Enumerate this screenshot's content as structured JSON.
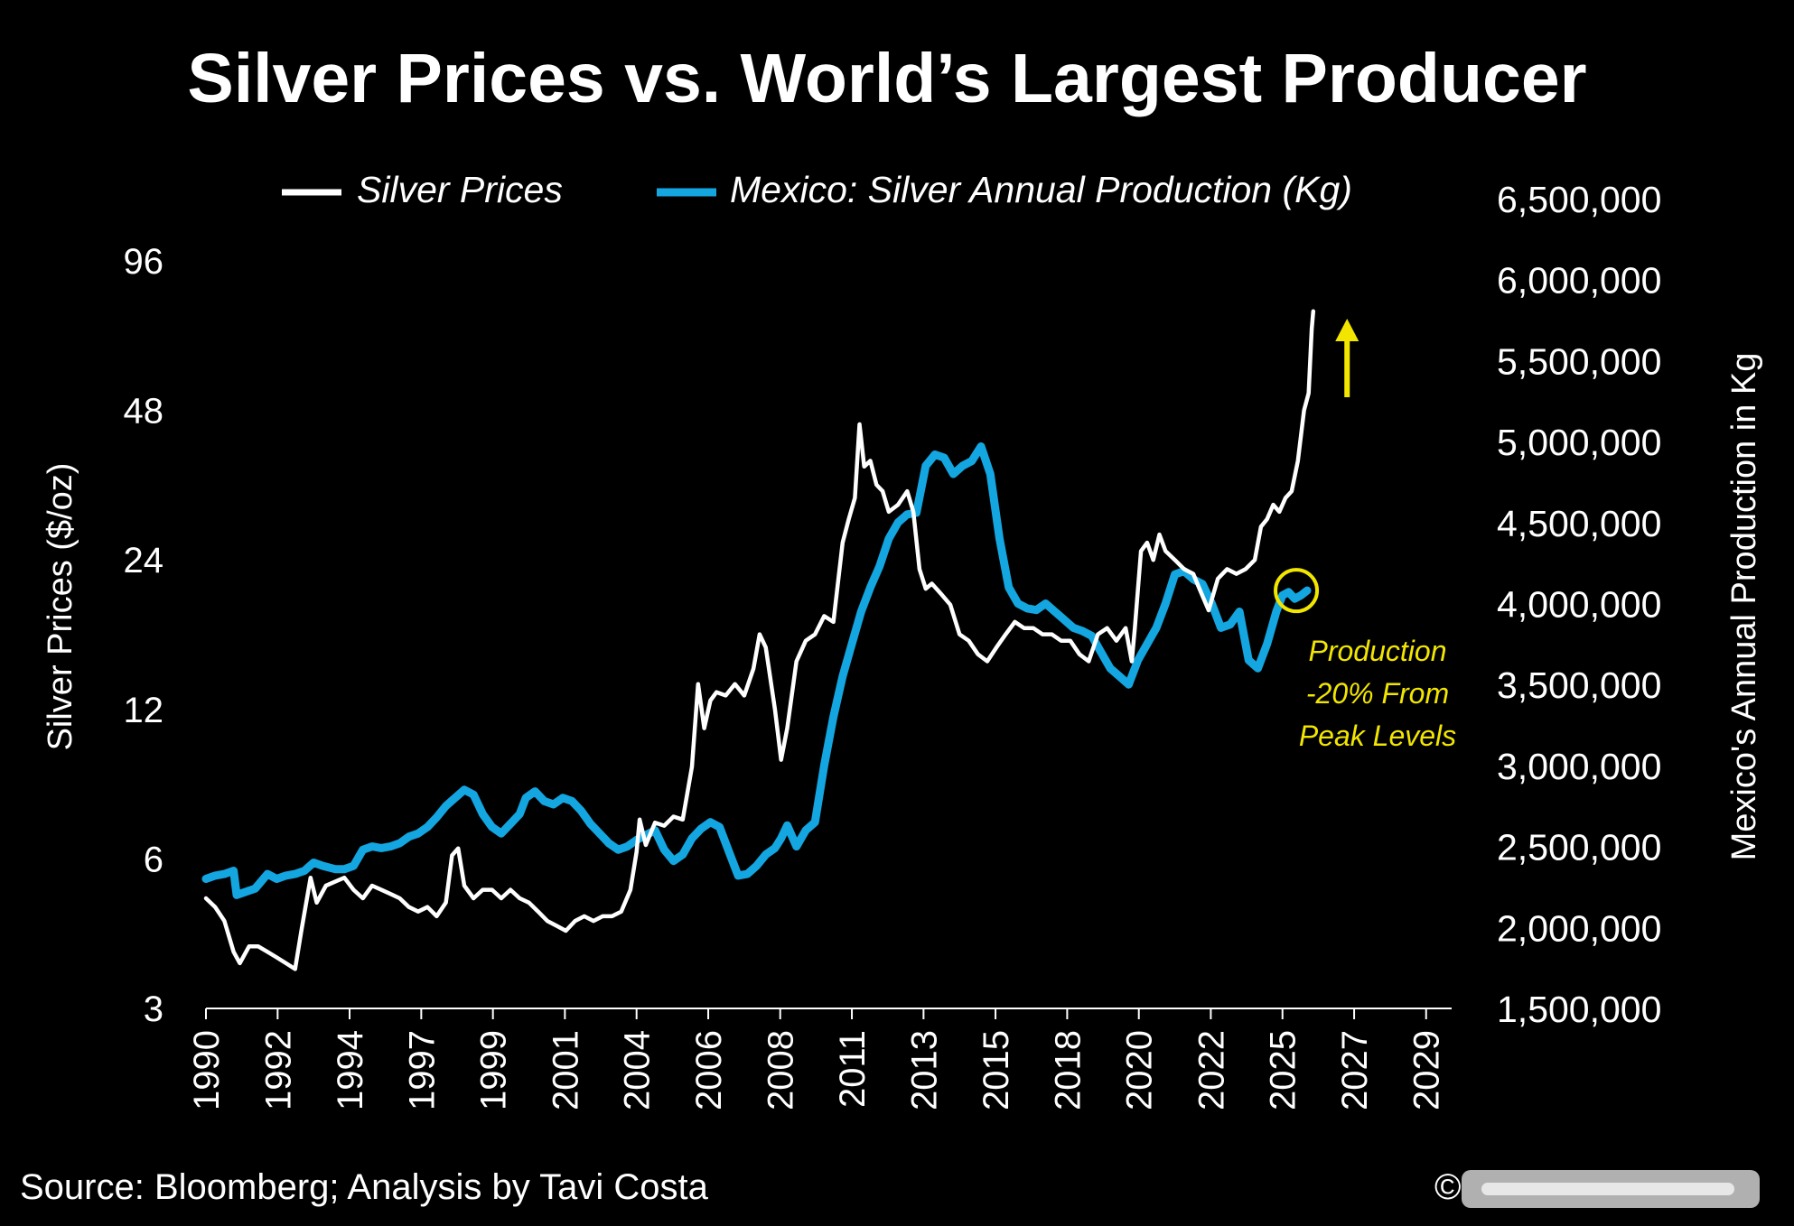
{
  "chart_data": {
    "type": "line",
    "title": "Silver Prices vs. World’s Largest Producer",
    "source": "Source: Bloomberg; Analysis by Tavi Costa",
    "copyright": "©",
    "left_axis": {
      "label": "Silver Prices ($/oz)",
      "scale": "log",
      "ylim": [
        3,
        96
      ],
      "ticks": [
        3,
        6,
        12,
        24,
        48,
        96
      ],
      "tick_labels": [
        "3",
        "6",
        "12",
        "24",
        "48",
        "96"
      ]
    },
    "right_axis": {
      "label": "Mexico's Annual Production in Kg",
      "scale": "linear",
      "ylim": [
        1500000,
        6500000
      ],
      "ticks": [
        1500000,
        2000000,
        2500000,
        3000000,
        3500000,
        4000000,
        4500000,
        5000000,
        5500000,
        6000000,
        6500000
      ],
      "tick_labels": [
        "1,500,000",
        "2,000,000",
        "2,500,000",
        "3,000,000",
        "3,500,000",
        "4,000,000",
        "4,500,000",
        "5,000,000",
        "5,500,000",
        "6,000,000",
        "6,500,000"
      ]
    },
    "x_axis": {
      "xlim": [
        1990,
        2030.5
      ],
      "ticks": [
        1990,
        1992.33,
        1994.67,
        1997,
        1999.33,
        2001.67,
        2004,
        2006.33,
        2008.67,
        2011,
        2013.33,
        2015.67,
        2018,
        2020.33,
        2022.67,
        2025,
        2027.33,
        2029.67
      ],
      "tick_labels": [
        "1990",
        "1992",
        "1994",
        "1997",
        "1999",
        "2001",
        "2004",
        "2006",
        "2008",
        "2011",
        "2013",
        "2015",
        "2018",
        "2020",
        "2022",
        "2025",
        "2027",
        "2029"
      ]
    },
    "series": [
      {
        "name": "Silver Prices",
        "axis": "left",
        "color": "#ffffff",
        "x": [
          1990.0,
          1990.3,
          1990.6,
          1990.9,
          1991.1,
          1991.4,
          1991.7,
          1992.0,
          1992.3,
          1992.6,
          1992.9,
          1993.1,
          1993.4,
          1993.6,
          1993.9,
          1994.2,
          1994.5,
          1994.8,
          1995.1,
          1995.4,
          1995.7,
          1996.0,
          1996.3,
          1996.6,
          1996.9,
          1997.2,
          1997.5,
          1997.8,
          1998.0,
          1998.2,
          1998.4,
          1998.7,
          1999.0,
          1999.3,
          1999.6,
          1999.9,
          2000.2,
          2000.5,
          2000.8,
          2001.1,
          2001.4,
          2001.7,
          2002.0,
          2002.3,
          2002.6,
          2002.9,
          2003.2,
          2003.5,
          2003.8,
          2004.0,
          2004.1,
          2004.3,
          2004.6,
          2004.9,
          2005.2,
          2005.5,
          2005.8,
          2006.0,
          2006.2,
          2006.4,
          2006.6,
          2006.9,
          2007.2,
          2007.5,
          2007.8,
          2008.0,
          2008.2,
          2008.5,
          2008.7,
          2008.9,
          2009.2,
          2009.5,
          2009.8,
          2010.1,
          2010.4,
          2010.7,
          2010.9,
          2011.1,
          2011.25,
          2011.4,
          2011.6,
          2011.8,
          2012.0,
          2012.2,
          2012.5,
          2012.8,
          2013.0,
          2013.2,
          2013.4,
          2013.6,
          2013.9,
          2014.2,
          2014.5,
          2014.8,
          2015.1,
          2015.4,
          2015.7,
          2016.0,
          2016.3,
          2016.6,
          2016.9,
          2017.2,
          2017.5,
          2017.8,
          2018.1,
          2018.4,
          2018.7,
          2019.0,
          2019.3,
          2019.6,
          2019.9,
          2020.1,
          2020.2,
          2020.4,
          2020.6,
          2020.8,
          2021.0,
          2021.2,
          2021.5,
          2021.8,
          2022.1,
          2022.3,
          2022.6,
          2022.9,
          2023.2,
          2023.5,
          2023.8,
          2024.1,
          2024.3,
          2024.5,
          2024.7,
          2024.9,
          2025.1,
          2025.3,
          2025.5,
          2025.7,
          2025.85,
          2025.95,
          2026.0
        ],
        "values": [
          5.0,
          4.8,
          4.5,
          3.9,
          3.7,
          4.0,
          4.0,
          3.9,
          3.8,
          3.7,
          3.6,
          4.3,
          5.5,
          4.9,
          5.3,
          5.4,
          5.5,
          5.2,
          5.0,
          5.3,
          5.2,
          5.1,
          5.0,
          4.8,
          4.7,
          4.8,
          4.6,
          4.9,
          6.1,
          6.3,
          5.3,
          5.0,
          5.2,
          5.2,
          5.0,
          5.2,
          5.0,
          4.9,
          4.7,
          4.5,
          4.4,
          4.3,
          4.5,
          4.6,
          4.5,
          4.6,
          4.6,
          4.7,
          5.2,
          6.2,
          7.2,
          6.4,
          7.1,
          7.0,
          7.3,
          7.2,
          9.2,
          13.5,
          11.0,
          12.5,
          13.0,
          12.8,
          13.5,
          12.8,
          14.5,
          17.0,
          16.0,
          12.0,
          9.5,
          11.0,
          15.0,
          16.5,
          17.0,
          18.5,
          18.0,
          26.0,
          29.0,
          32.0,
          45.0,
          37.0,
          38.0,
          34.0,
          33.0,
          30.0,
          31.0,
          33.0,
          30.0,
          23.0,
          21.0,
          21.5,
          20.5,
          19.5,
          17.0,
          16.5,
          15.5,
          15.0,
          16.0,
          17.0,
          18.0,
          17.5,
          17.5,
          17.0,
          17.0,
          16.5,
          16.5,
          15.5,
          15.0,
          17.0,
          17.5,
          16.5,
          17.5,
          15.0,
          17.5,
          25.0,
          26.0,
          24.0,
          27.0,
          25.0,
          24.0,
          23.0,
          22.5,
          21.0,
          19.0,
          22.0,
          23.0,
          22.5,
          23.0,
          24.0,
          28.0,
          29.0,
          31.0,
          30.0,
          32.0,
          33.0,
          38.0,
          48.0,
          52.0,
          70.0,
          76.0
        ]
      },
      {
        "name": "Mexico: Silver Annual Production (Kg)",
        "axis": "right",
        "color": "#14a6e0",
        "x": [
          1990.0,
          1990.3,
          1990.6,
          1990.9,
          1991.0,
          1991.3,
          1991.6,
          1992.0,
          1992.3,
          1992.6,
          1992.9,
          1993.2,
          1993.5,
          1993.8,
          1994.2,
          1994.5,
          1994.8,
          1995.1,
          1995.4,
          1995.7,
          1996.0,
          1996.3,
          1996.6,
          1996.9,
          1997.2,
          1997.5,
          1997.8,
          1998.1,
          1998.4,
          1998.7,
          1999.0,
          1999.3,
          1999.6,
          1999.9,
          2000.2,
          2000.4,
          2000.7,
          2001.0,
          2001.3,
          2001.6,
          2001.9,
          2002.2,
          2002.5,
          2002.8,
          2003.1,
          2003.4,
          2003.7,
          2004.0,
          2004.3,
          2004.6,
          2004.9,
          2005.2,
          2005.5,
          2005.8,
          2006.1,
          2006.4,
          2006.7,
          2007.0,
          2007.3,
          2007.6,
          2007.9,
          2008.2,
          2008.5,
          2008.7,
          2008.9,
          2009.2,
          2009.5,
          2009.8,
          2010.1,
          2010.4,
          2010.7,
          2011.0,
          2011.3,
          2011.6,
          2011.9,
          2012.2,
          2012.5,
          2012.8,
          2013.1,
          2013.4,
          2013.7,
          2014.0,
          2014.3,
          2014.6,
          2014.9,
          2015.2,
          2015.5,
          2015.8,
          2016.1,
          2016.4,
          2016.7,
          2017.0,
          2017.3,
          2017.6,
          2017.9,
          2018.2,
          2018.5,
          2018.8,
          2019.1,
          2019.4,
          2019.7,
          2020.0,
          2020.3,
          2020.6,
          2020.9,
          2021.2,
          2021.5,
          2021.8,
          2022.1,
          2022.4,
          2022.7,
          2023.0,
          2023.3,
          2023.6,
          2023.9,
          2024.2,
          2024.5,
          2024.8,
          2025.0,
          2025.2,
          2025.4,
          2025.6,
          2025.8
        ],
        "values": [
          2300000,
          2320000,
          2330000,
          2350000,
          2200000,
          2220000,
          2240000,
          2330000,
          2300000,
          2320000,
          2330000,
          2350000,
          2400000,
          2380000,
          2360000,
          2360000,
          2380000,
          2480000,
          2500000,
          2490000,
          2500000,
          2520000,
          2560000,
          2580000,
          2620000,
          2680000,
          2750000,
          2800000,
          2850000,
          2820000,
          2700000,
          2620000,
          2580000,
          2640000,
          2700000,
          2800000,
          2840000,
          2780000,
          2760000,
          2800000,
          2780000,
          2720000,
          2640000,
          2580000,
          2520000,
          2480000,
          2500000,
          2540000,
          2570000,
          2600000,
          2480000,
          2410000,
          2450000,
          2550000,
          2610000,
          2650000,
          2620000,
          2470000,
          2320000,
          2330000,
          2380000,
          2450000,
          2490000,
          2550000,
          2630000,
          2500000,
          2600000,
          2650000,
          3000000,
          3300000,
          3550000,
          3750000,
          3950000,
          4100000,
          4230000,
          4400000,
          4500000,
          4550000,
          4560000,
          4850000,
          4920000,
          4900000,
          4800000,
          4850000,
          4880000,
          4970000,
          4800000,
          4400000,
          4100000,
          4000000,
          3970000,
          3960000,
          4000000,
          3950000,
          3900000,
          3850000,
          3830000,
          3800000,
          3700000,
          3600000,
          3550000,
          3500000,
          3650000,
          3750000,
          3850000,
          4000000,
          4180000,
          4200000,
          4150000,
          4120000,
          4000000,
          3850000,
          3870000,
          3950000,
          3650000,
          3600000,
          3750000,
          3950000,
          4050000,
          4070000,
          4030000,
          4050000,
          4080000
        ]
      }
    ],
    "legend": {
      "position": "top",
      "entries": [
        "Silver Prices",
        "Mexico: Silver Annual Production (Kg)"
      ]
    },
    "annotations": {
      "production_note": [
        "Production",
        "-20% From",
        "Peak Levels"
      ],
      "highlight_colors": "#f2e600",
      "circle_at": {
        "x": 2025.45,
        "value": 4080000
      },
      "arrow_at": {
        "x": 2027.1
      }
    }
  }
}
